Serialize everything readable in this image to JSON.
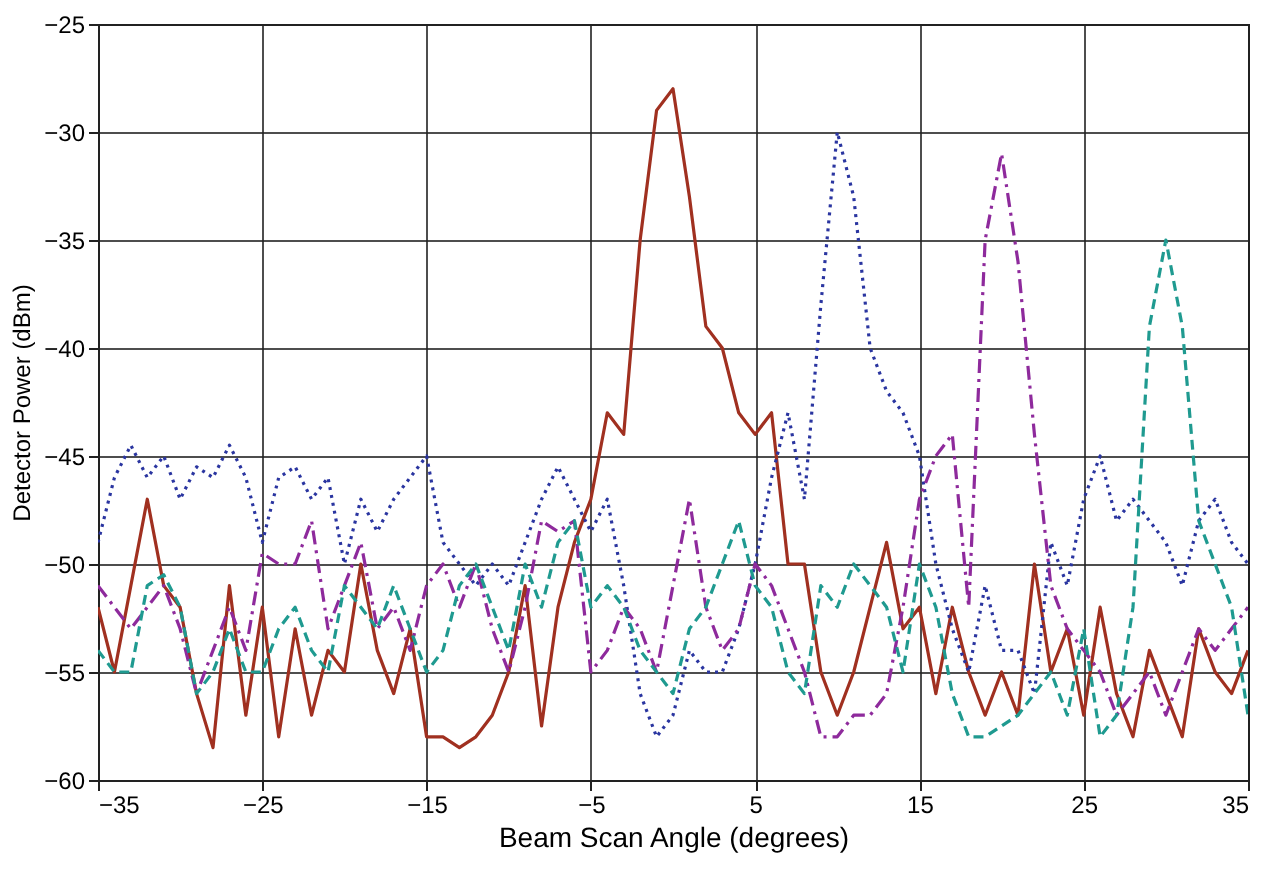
{
  "chart_data": {
    "type": "line",
    "xlabel": "Beam Scan Angle (degrees)",
    "ylabel": "Detector Power (dBm)",
    "x": [
      -35,
      -34,
      -33,
      -32,
      -31,
      -30,
      -29,
      -28,
      -27,
      -26,
      -25,
      -24,
      -23,
      -22,
      -21,
      -20,
      -19,
      -18,
      -17,
      -16,
      -15,
      -14,
      -13,
      -12,
      -11,
      -10,
      -9,
      -8,
      -7,
      -6,
      -5,
      -4,
      -3,
      -2,
      -1,
      0,
      1,
      2,
      3,
      4,
      5,
      6,
      7,
      8,
      9,
      10,
      11,
      12,
      13,
      14,
      15,
      16,
      17,
      18,
      19,
      20,
      21,
      22,
      23,
      24,
      25,
      26,
      27,
      28,
      29,
      30,
      31,
      32,
      33,
      34,
      35
    ],
    "series": [
      {
        "color": "#a03020",
        "line_style": "solid",
        "values": [
          -52,
          -55,
          -51,
          -47,
          -51,
          -52,
          -56,
          -58.5,
          -51,
          -57,
          -52,
          -58,
          -53,
          -57,
          -54,
          -55,
          -50,
          -54,
          -56,
          -53,
          -58,
          -58,
          -58.5,
          -58,
          -57,
          -55,
          -51,
          -57.5,
          -52,
          -49,
          -47,
          -43,
          -44,
          -35,
          -29,
          -28,
          -33,
          -39,
          -40,
          -43,
          -44,
          -43,
          -50,
          -50,
          -55,
          -57,
          -55,
          -52,
          -49,
          -53,
          -52,
          -56,
          -52,
          -55,
          -57,
          -55,
          -57,
          -50,
          -55,
          -53,
          -57,
          -52,
          -56,
          -58,
          -54,
          -56,
          -58,
          -53,
          -55,
          -56,
          -54
        ]
      },
      {
        "color": "#2a35a0",
        "line_style": "dotted",
        "values": [
          -49,
          -46,
          -44.5,
          -46,
          -45,
          -47,
          -45.5,
          -46,
          -44.5,
          -46,
          -49,
          -46,
          -45.5,
          -47,
          -46,
          -50,
          -47,
          -48.5,
          -47,
          -46,
          -45,
          -49,
          -50,
          -51,
          -50,
          -51,
          -49,
          -47,
          -45.5,
          -47,
          -48.5,
          -47,
          -51,
          -56,
          -58,
          -57,
          -54,
          -55,
          -55,
          -53,
          -50,
          -46,
          -43,
          -47,
          -38,
          -30,
          -33,
          -40,
          -42,
          -43,
          -45,
          -50,
          -53,
          -55,
          -51,
          -54,
          -54,
          -56,
          -49,
          -51,
          -47,
          -45,
          -48,
          -47,
          -48,
          -49,
          -51,
          -48,
          -47,
          -49,
          -50
        ]
      },
      {
        "color": "#8e2a9c",
        "line_style": "dashdot",
        "values": [
          -51,
          -52,
          -53,
          -52,
          -51,
          -53,
          -56,
          -54,
          -52,
          -54,
          -49.5,
          -50,
          -50,
          -48,
          -53,
          -51,
          -49,
          -53,
          -52,
          -54,
          -51,
          -50,
          -52,
          -50,
          -53,
          -55,
          -52,
          -48,
          -48.5,
          -48,
          -55,
          -54,
          -52,
          -53,
          -55,
          -51,
          -47,
          -52,
          -54,
          -53,
          -50,
          -51,
          -53,
          -55,
          -58,
          -58,
          -57,
          -57,
          -56,
          -52,
          -47,
          -45,
          -44,
          -52,
          -35,
          -31,
          -36,
          -44,
          -51,
          -53,
          -54,
          -55,
          -57,
          -56,
          -55,
          -57,
          -55,
          -53,
          -54,
          -53,
          -52
        ]
      },
      {
        "color": "#1f9a90",
        "line_style": "dashed",
        "values": [
          -54,
          -55,
          -55,
          -51,
          -50.5,
          -52,
          -56,
          -55,
          -53,
          -55,
          -55,
          -53,
          -52,
          -54,
          -55,
          -51,
          -52,
          -53,
          -51,
          -53,
          -55,
          -54,
          -51,
          -50,
          -52,
          -54,
          -50,
          -52,
          -49,
          -48,
          -52,
          -51,
          -52,
          -54,
          -55,
          -56,
          -53,
          -52,
          -50,
          -48,
          -51,
          -52,
          -55,
          -56,
          -51,
          -52,
          -50,
          -51,
          -52,
          -55,
          -50,
          -52,
          -56,
          -58,
          -58,
          -57.5,
          -57,
          -56,
          -55,
          -57,
          -53,
          -58,
          -57,
          -52,
          -39,
          -35,
          -39,
          -48,
          -50,
          -52,
          -57
        ]
      }
    ],
    "xlim": [
      -35,
      35
    ],
    "xticks": [
      -35,
      -25,
      -15,
      -5,
      5,
      15,
      25,
      35
    ],
    "ylim": [
      -60,
      -25
    ],
    "yticks": [
      -60,
      -55,
      -50,
      -45,
      -40,
      -35,
      -30,
      -25
    ],
    "grid": true,
    "marker": "none"
  }
}
